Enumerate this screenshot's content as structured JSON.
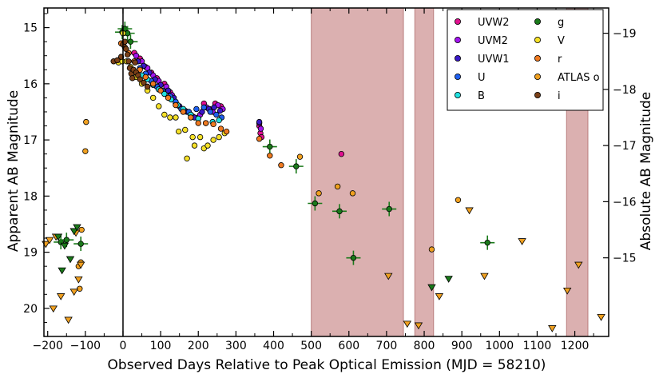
{
  "chart_data": {
    "type": "scatter",
    "title": "",
    "xlabel": "Observed Days Relative to Peak Optical Emission (MJD = 58210)",
    "ylabel": "Apparent AB Magnitude",
    "ylabel_right": "Absolute AB Magnitude",
    "xlim": [
      -210,
      1290
    ],
    "ylim": [
      20.5,
      14.65
    ],
    "x_ticks": [
      -200,
      -100,
      0,
      100,
      200,
      300,
      400,
      500,
      600,
      700,
      800,
      900,
      1000,
      1100,
      1200
    ],
    "y_ticks": [
      15,
      16,
      17,
      18,
      19,
      20
    ],
    "abs_offset": 34.1,
    "abs_ticks": [
      -19,
      -18,
      -17,
      -16,
      -15
    ],
    "peak_line_x": 0,
    "shaded_regions": [
      [
        500,
        745
      ],
      [
        775,
        825
      ],
      [
        1178,
        1235
      ]
    ],
    "shade_color": "#b05050",
    "legend": [
      {
        "label": "UVW2",
        "color": "#e0108f"
      },
      {
        "label": "UVM2",
        "color": "#a314f0"
      },
      {
        "label": "UVW1",
        "color": "#3a18c8"
      },
      {
        "label": "U",
        "color": "#1f60f0"
      },
      {
        "label": "B",
        "color": "#22e0e0"
      },
      {
        "label": "g",
        "color": "#1a7a1a"
      },
      {
        "label": "V",
        "color": "#f5e028"
      },
      {
        "label": "r",
        "color": "#f07a20"
      },
      {
        "label": "ATLAS o",
        "color": "#f0a020"
      },
      {
        "label": "i",
        "color": "#7a4018"
      }
    ],
    "series": [
      {
        "name": "UVW2",
        "color": "#e0108f",
        "points": [
          [
            30,
            15.45
          ],
          [
            45,
            15.55
          ],
          [
            60,
            15.7
          ],
          [
            75,
            15.8
          ],
          [
            90,
            15.9
          ],
          [
            110,
            16.0
          ],
          [
            125,
            16.15
          ],
          [
            140,
            16.35
          ],
          [
            160,
            16.45
          ],
          [
            180,
            16.55
          ],
          [
            200,
            16.6
          ],
          [
            215,
            16.35
          ],
          [
            230,
            16.45
          ],
          [
            245,
            16.35
          ],
          [
            260,
            16.4
          ],
          [
            362,
            16.75
          ],
          [
            365,
            16.88
          ],
          [
            368,
            16.95
          ],
          [
            580,
            17.25
          ]
        ]
      },
      {
        "name": "UVM2",
        "color": "#a314f0",
        "points": [
          [
            35,
            15.5
          ],
          [
            50,
            15.6
          ],
          [
            65,
            15.72
          ],
          [
            80,
            15.85
          ],
          [
            95,
            15.95
          ],
          [
            115,
            16.05
          ],
          [
            130,
            16.2
          ],
          [
            145,
            16.38
          ],
          [
            165,
            16.48
          ],
          [
            185,
            16.58
          ],
          [
            205,
            16.55
          ],
          [
            222,
            16.42
          ],
          [
            238,
            16.5
          ],
          [
            252,
            16.38
          ],
          [
            265,
            16.45
          ],
          [
            362,
            16.7
          ],
          [
            366,
            16.8
          ]
        ]
      },
      {
        "name": "UVW1",
        "color": "#3a18c8",
        "points": [
          [
            40,
            15.6
          ],
          [
            55,
            15.68
          ],
          [
            70,
            15.8
          ],
          [
            85,
            15.92
          ],
          [
            100,
            16.02
          ],
          [
            120,
            16.12
          ],
          [
            135,
            16.25
          ],
          [
            150,
            16.4
          ],
          [
            170,
            16.5
          ],
          [
            190,
            16.6
          ],
          [
            210,
            16.5
          ],
          [
            228,
            16.45
          ],
          [
            242,
            16.42
          ],
          [
            258,
            16.48
          ],
          [
            362,
            16.68
          ]
        ]
      },
      {
        "name": "U",
        "color": "#1f60f0",
        "points": [
          [
            45,
            15.72
          ],
          [
            60,
            15.82
          ],
          [
            75,
            15.95
          ],
          [
            90,
            16.05
          ],
          [
            105,
            16.12
          ],
          [
            125,
            16.22
          ],
          [
            140,
            16.32
          ],
          [
            155,
            16.45
          ],
          [
            175,
            16.5
          ],
          [
            195,
            16.45
          ],
          [
            215,
            16.42
          ],
          [
            232,
            16.5
          ],
          [
            248,
            16.55
          ],
          [
            262,
            16.6
          ]
        ]
      },
      {
        "name": "B",
        "color": "#22e0e0",
        "points": [
          [
            50,
            15.85
          ],
          [
            65,
            15.92
          ],
          [
            80,
            16.02
          ],
          [
            95,
            16.1
          ],
          [
            110,
            16.18
          ],
          [
            128,
            16.28
          ],
          [
            145,
            16.38
          ],
          [
            160,
            16.45
          ],
          [
            180,
            16.55
          ],
          [
            200,
            16.62
          ],
          [
            220,
            16.7
          ],
          [
            238,
            16.68
          ],
          [
            255,
            16.65
          ]
        ]
      },
      {
        "name": "g",
        "color": "#1a7a1a",
        "err": true,
        "points": [
          [
            -2,
            15.08
          ],
          [
            5,
            15.02
          ],
          [
            12,
            15.1
          ],
          [
            20,
            15.25
          ],
          [
            -165,
            18.82
          ],
          [
            -150,
            18.78
          ],
          [
            -112,
            18.85
          ],
          [
            390,
            17.12
          ],
          [
            460,
            17.47
          ],
          [
            510,
            18.13
          ],
          [
            575,
            18.27
          ],
          [
            612,
            19.1
          ],
          [
            707,
            18.23
          ],
          [
            968,
            18.83
          ]
        ]
      },
      {
        "name": "V",
        "color": "#f5e028",
        "points": [
          [
            -12,
            15.62
          ],
          [
            -2,
            15.6
          ],
          [
            0,
            15.1
          ],
          [
            10,
            15.6
          ],
          [
            20,
            15.7
          ],
          [
            35,
            15.88
          ],
          [
            50,
            16.0
          ],
          [
            65,
            16.12
          ],
          [
            80,
            16.25
          ],
          [
            95,
            16.4
          ],
          [
            110,
            16.55
          ],
          [
            125,
            16.6
          ],
          [
            140,
            16.6
          ],
          [
            148,
            16.85
          ],
          [
            165,
            16.82
          ],
          [
            170,
            17.33
          ],
          [
            185,
            16.95
          ],
          [
            190,
            17.1
          ],
          [
            205,
            16.95
          ],
          [
            215,
            17.15
          ],
          [
            225,
            17.1
          ],
          [
            240,
            17.0
          ],
          [
            255,
            16.95
          ],
          [
            270,
            16.88
          ]
        ]
      },
      {
        "name": "r",
        "color": "#f07a20",
        "points": [
          [
            -5,
            15.28
          ],
          [
            5,
            15.35
          ],
          [
            15,
            15.45
          ],
          [
            30,
            15.6
          ],
          [
            45,
            15.75
          ],
          [
            60,
            15.88
          ],
          [
            80,
            16.0
          ],
          [
            100,
            16.12
          ],
          [
            120,
            16.25
          ],
          [
            140,
            16.38
          ],
          [
            160,
            16.5
          ],
          [
            180,
            16.6
          ],
          [
            200,
            16.7
          ],
          [
            220,
            16.7
          ],
          [
            240,
            16.72
          ],
          [
            260,
            16.8
          ],
          [
            275,
            16.85
          ],
          [
            362,
            16.98
          ],
          [
            390,
            17.28
          ],
          [
            420,
            17.45
          ]
        ]
      },
      {
        "name": "ATLAS o",
        "color": "#f0a020",
        "points": [
          [
            -98,
            16.68
          ],
          [
            -100,
            17.2
          ],
          [
            -115,
            19.65
          ],
          [
            -110,
            18.6
          ],
          [
            -112,
            19.18
          ],
          [
            -118,
            19.25
          ],
          [
            470,
            17.3
          ],
          [
            520,
            17.95
          ],
          [
            570,
            17.83
          ],
          [
            610,
            17.95
          ],
          [
            820,
            18.95
          ],
          [
            890,
            18.07
          ]
        ]
      },
      {
        "name": "i",
        "color": "#7a4018",
        "points": [
          [
            -25,
            15.6
          ],
          [
            -15,
            15.58
          ],
          [
            -5,
            15.52
          ],
          [
            0,
            15.3
          ],
          [
            5,
            15.25
          ],
          [
            8,
            15.38
          ],
          [
            12,
            15.48
          ],
          [
            15,
            15.6
          ],
          [
            18,
            15.72
          ],
          [
            22,
            15.82
          ],
          [
            25,
            15.9
          ],
          [
            28,
            15.75
          ],
          [
            32,
            15.62
          ],
          [
            35,
            15.8
          ],
          [
            40,
            15.85
          ],
          [
            45,
            15.92
          ],
          [
            55,
            15.98
          ],
          [
            65,
            16.05
          ]
        ]
      }
    ],
    "upper_limits": [
      {
        "color": "#f0a020",
        "points": [
          [
            -205,
            18.85
          ],
          [
            -195,
            18.78
          ],
          [
            -185,
            20.0
          ],
          [
            -178,
            18.72
          ],
          [
            -165,
            19.78
          ],
          [
            -145,
            20.2
          ],
          [
            -130,
            19.7
          ],
          [
            -125,
            18.65
          ],
          [
            -118,
            19.48
          ],
          [
            -112,
            19.22
          ],
          [
            705,
            19.42
          ],
          [
            755,
            20.27
          ],
          [
            785,
            20.3
          ],
          [
            840,
            19.78
          ],
          [
            920,
            18.25
          ],
          [
            960,
            19.42
          ],
          [
            1060,
            18.8
          ],
          [
            1140,
            20.35
          ],
          [
            1180,
            19.68
          ],
          [
            1210,
            19.22
          ],
          [
            1270,
            20.15
          ]
        ]
      },
      {
        "color": "#1a7a1a",
        "points": [
          [
            -172,
            18.72
          ],
          [
            -162,
            19.32
          ],
          [
            -155,
            18.88
          ],
          [
            -140,
            19.12
          ],
          [
            -130,
            18.62
          ],
          [
            -122,
            18.55
          ],
          [
            820,
            19.62
          ],
          [
            865,
            19.47
          ]
        ]
      }
    ]
  }
}
